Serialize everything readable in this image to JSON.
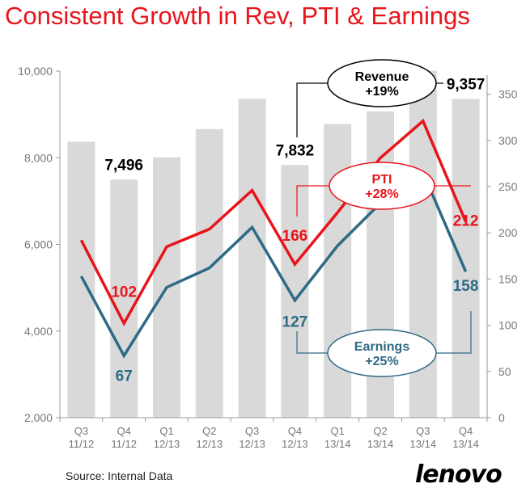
{
  "title": "Consistent Growth in Rev, PTI & Earnings",
  "source": "Source: Internal Data",
  "logo_text": "lenovo",
  "colors": {
    "title": "#e8141b",
    "bar": "#d9d9d9",
    "pti": "#e8141b",
    "earnings": "#2e6b85",
    "axis": "#999999"
  },
  "chart_data": {
    "type": "bar",
    "categories": [
      "Q3 11/12",
      "Q4 11/12",
      "Q1 12/13",
      "Q2 12/13",
      "Q3 12/13",
      "Q4 12/13",
      "Q1 13/14",
      "Q2 13/14",
      "Q3 13/14",
      "Q4 13/14"
    ],
    "x_ticks": [
      {
        "line1": "Q3",
        "line2": "11/12"
      },
      {
        "line1": "Q4",
        "line2": "11/12"
      },
      {
        "line1": "Q1",
        "line2": "12/13"
      },
      {
        "line1": "Q2",
        "line2": "12/13"
      },
      {
        "line1": "Q3",
        "line2": "12/13"
      },
      {
        "line1": "Q4",
        "line2": "12/13"
      },
      {
        "line1": "Q1",
        "line2": "13/14"
      },
      {
        "line1": "Q2",
        "line2": "13/14"
      },
      {
        "line1": "Q3",
        "line2": "13/14"
      },
      {
        "line1": "Q4",
        "line2": "13/14"
      }
    ],
    "series": [
      {
        "name": "Revenue",
        "kind": "bar",
        "axis": "left",
        "values": [
          8370,
          7496,
          8010,
          8660,
          9360,
          7832,
          8780,
          9070,
          10010,
          9357
        ]
      },
      {
        "name": "PTI",
        "kind": "line",
        "axis": "right",
        "values": [
          192,
          102,
          185,
          204,
          246,
          166,
          222,
          281,
          321,
          212
        ]
      },
      {
        "name": "Earnings",
        "kind": "line",
        "axis": "right",
        "values": [
          153,
          67,
          141,
          162,
          206,
          127,
          186,
          232,
          265,
          158
        ]
      }
    ],
    "left_axis": {
      "min": 2000,
      "max": 10000,
      "ticks": [
        "2,000",
        "4,000",
        "6,000",
        "8,000",
        "10,000"
      ]
    },
    "right_axis": {
      "min": 0,
      "max": 375,
      "ticks": [
        "0",
        "50",
        "100",
        "150",
        "200",
        "250",
        "300",
        "350"
      ]
    },
    "data_labels": {
      "revenue": [
        {
          "index": 1,
          "text": "7,496"
        },
        {
          "index": 5,
          "text": "7,832"
        },
        {
          "index": 9,
          "text": "9,357"
        }
      ],
      "pti": [
        {
          "index": 1,
          "text": "102"
        },
        {
          "index": 5,
          "text": "166"
        },
        {
          "index": 9,
          "text": "212"
        }
      ],
      "earnings": [
        {
          "index": 1,
          "text": "67"
        },
        {
          "index": 5,
          "text": "127"
        },
        {
          "index": 9,
          "text": "158"
        }
      ]
    },
    "callouts": {
      "revenue": {
        "name": "Revenue",
        "growth": "+19%"
      },
      "pti": {
        "name": "PTI",
        "growth": "+28%"
      },
      "earnings": {
        "name": "Earnings",
        "growth": "+25%"
      }
    }
  }
}
